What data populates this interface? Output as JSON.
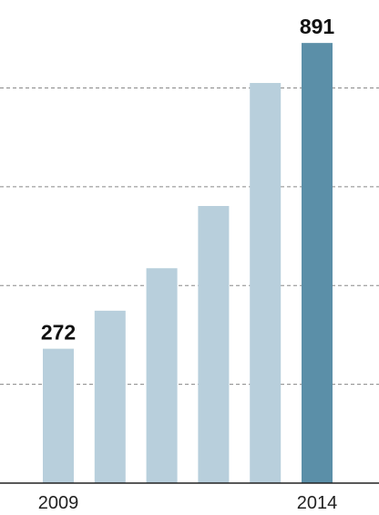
{
  "chart_data": {
    "type": "bar",
    "categories": [
      "2009",
      null,
      null,
      null,
      null,
      "2014"
    ],
    "values": [
      272,
      349,
      435,
      561,
      810,
      891
    ],
    "colors": [
      "#b8cfdc",
      "#b8cfdc",
      "#b8cfdc",
      "#b8cfdc",
      "#b8cfdc",
      "#5b8fa8"
    ],
    "show_value_labels": [
      true,
      false,
      false,
      false,
      false,
      true
    ],
    "ylim": [
      0,
      978
    ],
    "gridlines": [
      200,
      400,
      600,
      800
    ],
    "grid": true
  }
}
